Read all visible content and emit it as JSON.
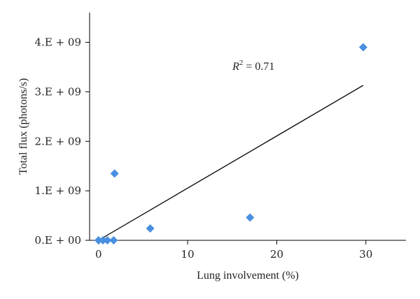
{
  "chart_data": {
    "type": "scatter",
    "xlabel": "Lung involvement (%)",
    "ylabel": "Total flux (photons/s)",
    "xlim": [
      -1,
      34.5
    ],
    "ylim": [
      0,
      4600000000.0
    ],
    "x_ticks": [
      0,
      10,
      20,
      30
    ],
    "x_tick_labels": [
      "0",
      "10",
      "20",
      "30"
    ],
    "y_ticks": [
      0,
      1000000000.0,
      2000000000.0,
      3000000000.0,
      4000000000.0
    ],
    "y_tick_labels": [
      "0.E + 00",
      "1.E + 09",
      "2.E + 09",
      "3.E + 09",
      "4.E + 09"
    ],
    "points": [
      {
        "x": 0,
        "y": 0
      },
      {
        "x": 0.5,
        "y": 0
      },
      {
        "x": 1.0,
        "y": 0
      },
      {
        "x": 1.7,
        "y": 0
      },
      {
        "x": 1.8,
        "y": 1350000000.0
      },
      {
        "x": 5.8,
        "y": 240000000.0
      },
      {
        "x": 17.0,
        "y": 460000000.0
      },
      {
        "x": 29.7,
        "y": 3900000000.0
      }
    ],
    "trendline": {
      "x": [
        0,
        29.7
      ],
      "y": [
        0,
        3130000000.0
      ]
    },
    "annotation": {
      "r2_label": "R",
      "r2_sup": "2",
      "r2_value": " = 0.71"
    },
    "marker_color": "#4a8fe0",
    "line_color": "#000000",
    "grid": false
  }
}
